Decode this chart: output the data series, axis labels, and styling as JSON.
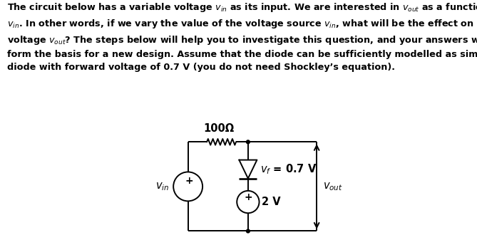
{
  "resistor_label": "100Ω",
  "diode_label": "$v_f$ = 0.7 V",
  "voltage_source_label": "2 V",
  "vin_label": "$v_{in}$",
  "vout_label": "$v_{out}$",
  "plus_sign": "+",
  "bg_color": "#ffffff",
  "line_color": "#000000",
  "text_color": "#000000",
  "font_size_text": 9.2,
  "font_size_circuit": 10.5,
  "lw": 1.4,
  "text_line1": "The circuit below has a variable voltage $v_{in}$ as its input. We are interested in $v_{out}$ as a function of",
  "text_line2": "$v_{in}$. In other words, if we vary the value of the voltage source $v_{in}$, what will be the effect on the",
  "text_line3": "voltage $v_{out}$? The steps below will help you to investigate this question, and your answers will",
  "text_line4": "form the basis for a new design. Assume that the diode can be sufficiently modelled as simple",
  "text_line5": "diode with forward voltage of 0.7 V (you do not need Shockley’s equation)."
}
